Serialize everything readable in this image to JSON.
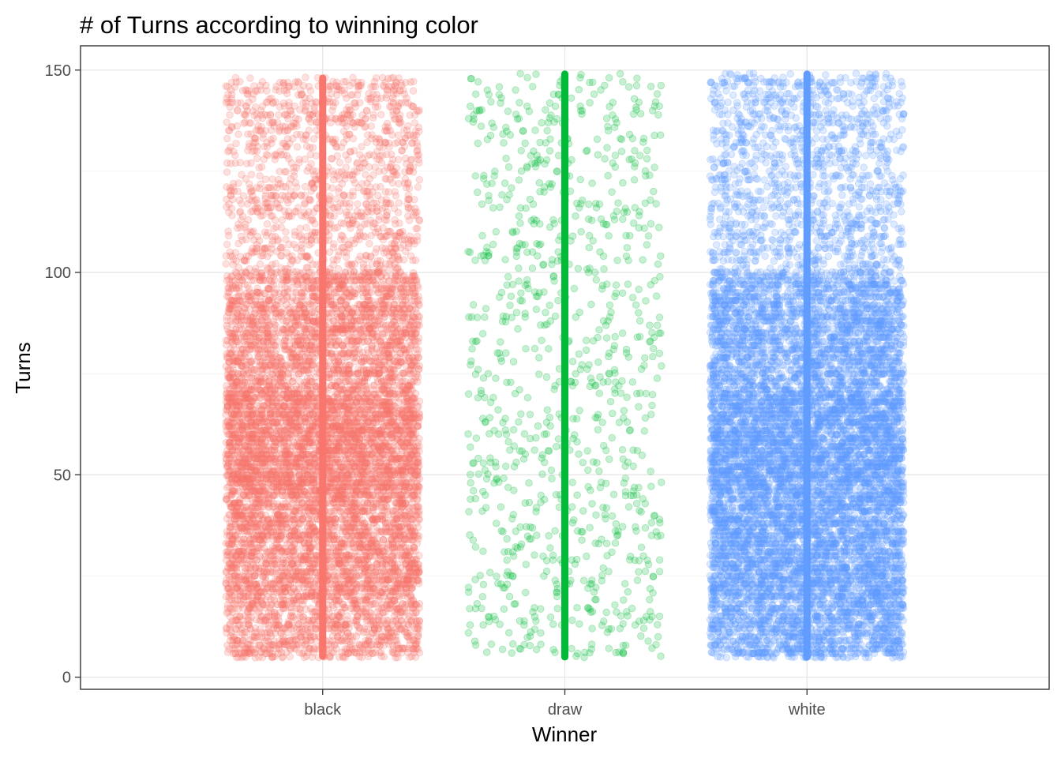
{
  "chart_data": {
    "type": "scatter",
    "title": "# of Turns according to winning color",
    "xlabel": "Winner",
    "ylabel": "Turns",
    "categories": [
      "black",
      "draw",
      "white"
    ],
    "ylim": [
      -3,
      156
    ],
    "yticks": [
      0,
      50,
      100,
      150
    ],
    "grid": true,
    "legend": "none",
    "jitter_width": 0.4,
    "series": [
      {
        "category": "black",
        "color": "#F8766D",
        "count": 9100,
        "turns_range": [
          5,
          148
        ],
        "turns_distribution": [
          {
            "range": [
              5,
              20
            ],
            "share": 0.1
          },
          {
            "range": [
              20,
              45
            ],
            "share": 0.23
          },
          {
            "range": [
              45,
              70
            ],
            "share": 0.3
          },
          {
            "range": [
              70,
              100
            ],
            "share": 0.24
          },
          {
            "range": [
              100,
              148
            ],
            "share": 0.13
          }
        ]
      },
      {
        "category": "draw",
        "color": "#00BA38",
        "count": 950,
        "turns_range": [
          5,
          149
        ],
        "turns_distribution": [
          {
            "range": [
              5,
              149
            ],
            "share": 1.0
          }
        ]
      },
      {
        "category": "white",
        "color": "#619CFF",
        "count": 10000,
        "turns_range": [
          5,
          149
        ],
        "turns_distribution": [
          {
            "range": [
              5,
              20
            ],
            "share": 0.12
          },
          {
            "range": [
              20,
              45
            ],
            "share": 0.24
          },
          {
            "range": [
              45,
              70
            ],
            "share": 0.28
          },
          {
            "range": [
              70,
              100
            ],
            "share": 0.23
          },
          {
            "range": [
              100,
              149
            ],
            "share": 0.13
          }
        ]
      }
    ]
  }
}
